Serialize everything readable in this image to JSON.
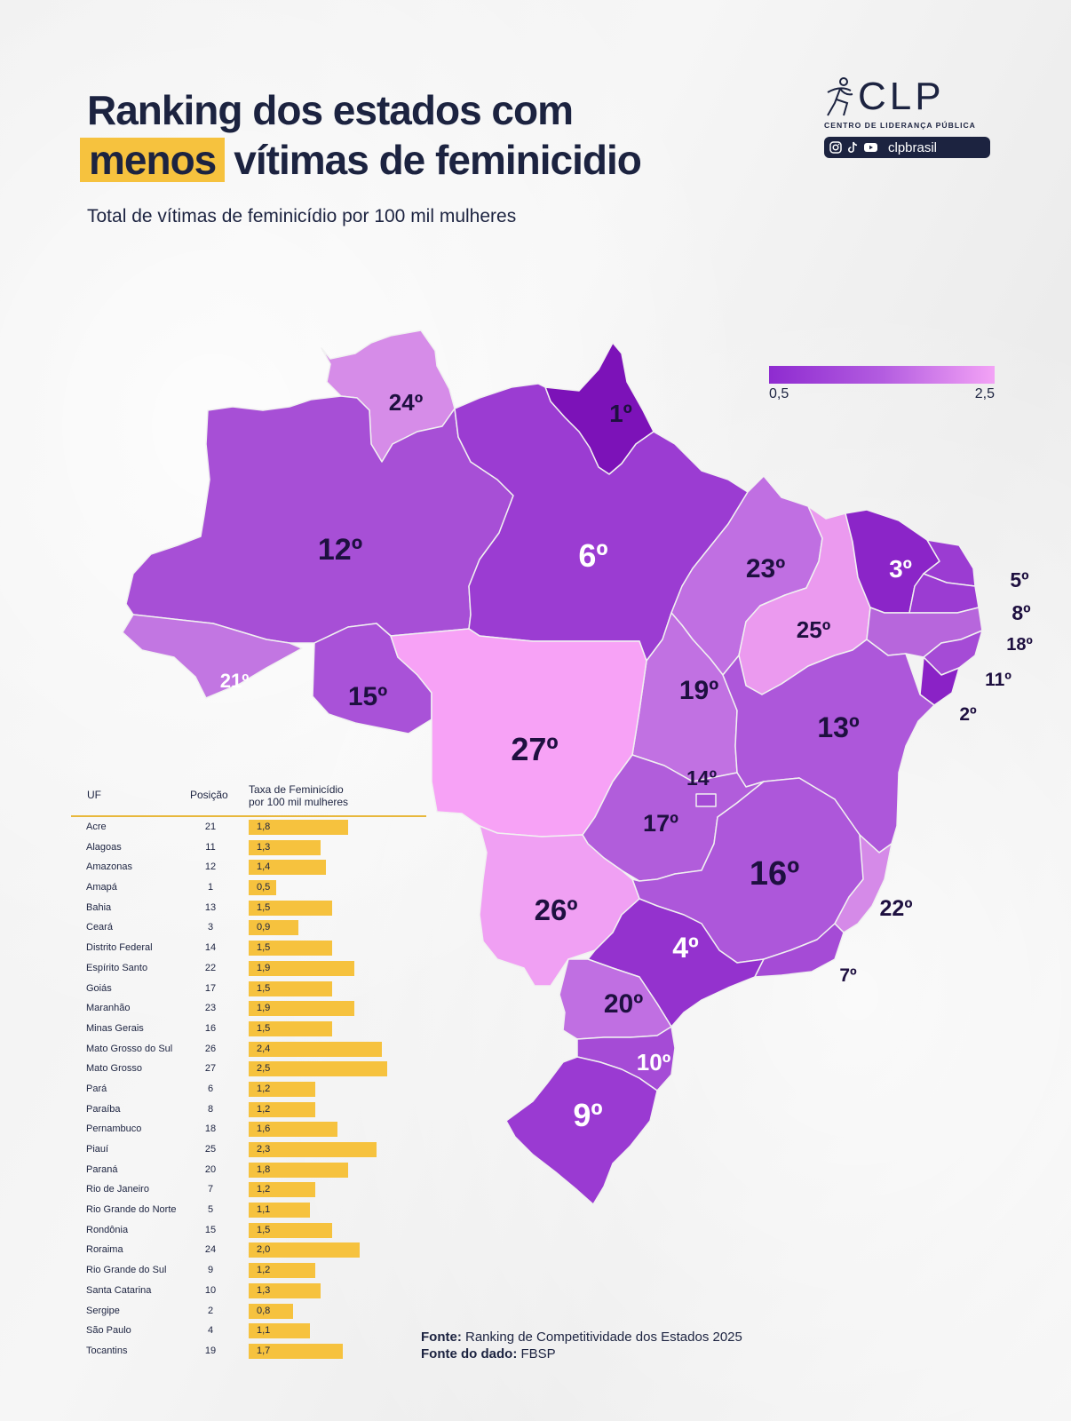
{
  "title": {
    "line1": "Ranking dos estados com",
    "highlight": "menos",
    "line2_rest": "vítimas de feminicidio"
  },
  "subtitle": "Total de vítimas de feminicídio por 100 mil mulheres",
  "logo": {
    "name": "CLP",
    "tagline": "CENTRO DE LIDERANÇA PÚBLICA",
    "handle": "clpbrasil",
    "social_icons": [
      "instagram-icon",
      "tiktok-icon",
      "youtube-icon"
    ]
  },
  "legend": {
    "min_label": "0,5",
    "max_label": "2,5",
    "min": 0.5,
    "max": 2.5,
    "color_low": "#8e2bd0",
    "color_high": "#f3a3f6"
  },
  "map_labels": {
    "RR": "24º",
    "AP": "1º",
    "AM": "12º",
    "PA": "6º",
    "MA": "23º",
    "CE": "3º",
    "RN": "5º",
    "PB": "8º",
    "PE": "18º",
    "AL": "11º",
    "SE": "2º",
    "PI": "25º",
    "AC": "21º",
    "RO": "15º",
    "MT": "27º",
    "TO": "19º",
    "BA": "13º",
    "DF": "14º",
    "GO": "17º",
    "MG": "16º",
    "ES": "22º",
    "MS": "26º",
    "SP": "4º",
    "RJ": "7º",
    "PR": "20º",
    "SC": "10º",
    "RS": "9º"
  },
  "table": {
    "headers": {
      "uf": "UF",
      "posicao": "Posição",
      "taxa_line1": "Taxa de Feminicídio",
      "taxa_line2": "por 100 mil mulheres"
    },
    "rows": [
      {
        "uf": "Acre",
        "pos": "21",
        "taxa": "1,8",
        "value": 1.8
      },
      {
        "uf": "Alagoas",
        "pos": "11",
        "taxa": "1,3",
        "value": 1.3
      },
      {
        "uf": "Amazonas",
        "pos": "12",
        "taxa": "1,4",
        "value": 1.4
      },
      {
        "uf": "Amapá",
        "pos": "1",
        "taxa": "0,5",
        "value": 0.5
      },
      {
        "uf": "Bahia",
        "pos": "13",
        "taxa": "1,5",
        "value": 1.5
      },
      {
        "uf": "Ceará",
        "pos": "3",
        "taxa": "0,9",
        "value": 0.9
      },
      {
        "uf": "Distrito Federal",
        "pos": "14",
        "taxa": "1,5",
        "value": 1.5
      },
      {
        "uf": "Espírito Santo",
        "pos": "22",
        "taxa": "1,9",
        "value": 1.9
      },
      {
        "uf": "Goiás",
        "pos": "17",
        "taxa": "1,5",
        "value": 1.5
      },
      {
        "uf": "Maranhão",
        "pos": "23",
        "taxa": "1,9",
        "value": 1.9
      },
      {
        "uf": "Minas Gerais",
        "pos": "16",
        "taxa": "1,5",
        "value": 1.5
      },
      {
        "uf": "Mato Grosso do Sul",
        "pos": "26",
        "taxa": "2,4",
        "value": 2.4
      },
      {
        "uf": "Mato Grosso",
        "pos": "27",
        "taxa": "2,5",
        "value": 2.5
      },
      {
        "uf": "Pará",
        "pos": "6",
        "taxa": "1,2",
        "value": 1.2
      },
      {
        "uf": "Paraíba",
        "pos": "8",
        "taxa": "1,2",
        "value": 1.2
      },
      {
        "uf": "Pernambuco",
        "pos": "18",
        "taxa": "1,6",
        "value": 1.6
      },
      {
        "uf": "Piauí",
        "pos": "25",
        "taxa": "2,3",
        "value": 2.3
      },
      {
        "uf": "Paraná",
        "pos": "20",
        "taxa": "1,8",
        "value": 1.8
      },
      {
        "uf": "Rio de Janeiro",
        "pos": "7",
        "taxa": "1,2",
        "value": 1.2
      },
      {
        "uf": "Rio Grande do Norte",
        "pos": "5",
        "taxa": "1,1",
        "value": 1.1
      },
      {
        "uf": "Rondônia",
        "pos": "15",
        "taxa": "1,5",
        "value": 1.5
      },
      {
        "uf": "Roraima",
        "pos": "24",
        "taxa": "2,0",
        "value": 2.0
      },
      {
        "uf": "Rio Grande do Sul",
        "pos": "9",
        "taxa": "1,2",
        "value": 1.2
      },
      {
        "uf": "Santa Catarina",
        "pos": "10",
        "taxa": "1,3",
        "value": 1.3
      },
      {
        "uf": "Sergipe",
        "pos": "2",
        "taxa": "0,8",
        "value": 0.8
      },
      {
        "uf": "São Paulo",
        "pos": "4",
        "taxa": "1,1",
        "value": 1.1
      },
      {
        "uf": "Tocantins",
        "pos": "19",
        "taxa": "1,7",
        "value": 1.7
      }
    ]
  },
  "source": {
    "label1": "Fonte:",
    "text1": "Ranking de Competitividade dos Estados 2025",
    "label2": "Fonte do dado:",
    "text2": "FBSP"
  }
}
